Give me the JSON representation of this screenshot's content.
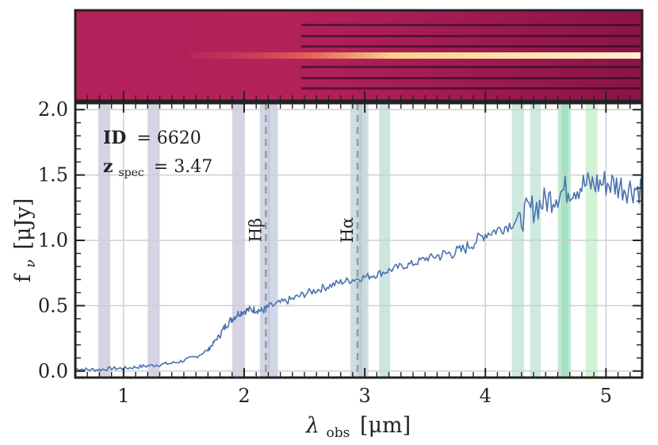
{
  "chart_data": {
    "type": "line",
    "xlabel": "λ",
    "xlabel_sub": "obs",
    "xlabel_unit": "[μm]",
    "ylabel": "f",
    "ylabel_sub": "ν",
    "ylabel_unit": "[μJy]",
    "xlim": [
      0.6,
      5.3
    ],
    "ylim": [
      -0.05,
      2.05
    ],
    "x_ticks": [
      1,
      2,
      3,
      4,
      5
    ],
    "x_tick_labels": [
      "1",
      "2",
      "3",
      "4",
      "5"
    ],
    "y_ticks": [
      0.0,
      0.5,
      1.0,
      1.5,
      2.0
    ],
    "y_tick_labels": [
      "0.0",
      "0.5",
      "1.0",
      "1.5",
      "2.0"
    ],
    "grid": true,
    "annotation": {
      "id_label": "ID",
      "id_value": "= 6620",
      "z_label": "z",
      "z_sub": "spec",
      "z_value": "= 3.47"
    },
    "emission_lines": [
      {
        "label": "Hβ",
        "x": 2.18
      },
      {
        "label": "Hα",
        "x": 2.94
      }
    ],
    "bands": [
      {
        "x0": 0.79,
        "x1": 0.89,
        "color": "#b7aed0"
      },
      {
        "x0": 1.2,
        "x1": 1.3,
        "color": "#b7aed0"
      },
      {
        "x0": 1.9,
        "x1": 2.0,
        "color": "#b7aed0"
      },
      {
        "x0": 2.13,
        "x1": 2.21,
        "color": "#a9b5cf"
      },
      {
        "x0": 2.2,
        "x1": 2.28,
        "color": "#a9b5cf"
      },
      {
        "x0": 2.88,
        "x1": 2.98,
        "color": "#a4c4cc"
      },
      {
        "x0": 2.95,
        "x1": 3.03,
        "color": "#a4c4cc"
      },
      {
        "x0": 3.12,
        "x1": 3.21,
        "color": "#a4cfc9"
      },
      {
        "x0": 4.22,
        "x1": 4.32,
        "color": "#a4d7c6"
      },
      {
        "x0": 4.37,
        "x1": 4.46,
        "color": "#a4d7c6"
      },
      {
        "x0": 4.6,
        "x1": 4.69,
        "color": "#8fdbb3"
      },
      {
        "x0": 4.63,
        "x1": 4.71,
        "color": "#8fdbb3"
      },
      {
        "x0": 4.83,
        "x1": 4.93,
        "color": "#b5e8b3"
      }
    ],
    "series": [
      {
        "color": "#4c72b0",
        "points": [
          [
            0.6,
            0.02
          ],
          [
            0.7,
            0.01
          ],
          [
            0.8,
            0.01
          ],
          [
            0.9,
            0.02
          ],
          [
            1.0,
            0.02
          ],
          [
            1.1,
            0.03
          ],
          [
            1.2,
            0.04
          ],
          [
            1.3,
            0.05
          ],
          [
            1.4,
            0.06
          ],
          [
            1.5,
            0.08
          ],
          [
            1.6,
            0.11
          ],
          [
            1.7,
            0.16
          ],
          [
            1.75,
            0.22
          ],
          [
            1.8,
            0.28
          ],
          [
            1.85,
            0.35
          ],
          [
            1.9,
            0.4
          ],
          [
            1.95,
            0.44
          ],
          [
            2.0,
            0.46
          ],
          [
            2.05,
            0.47
          ],
          [
            2.1,
            0.47
          ],
          [
            2.15,
            0.46
          ],
          [
            2.2,
            0.49
          ],
          [
            2.3,
            0.52
          ],
          [
            2.4,
            0.55
          ],
          [
            2.5,
            0.59
          ],
          [
            2.6,
            0.62
          ],
          [
            2.7,
            0.65
          ],
          [
            2.8,
            0.68
          ],
          [
            2.9,
            0.7
          ],
          [
            3.0,
            0.72
          ],
          [
            3.1,
            0.74
          ],
          [
            3.2,
            0.77
          ],
          [
            3.3,
            0.8
          ],
          [
            3.4,
            0.82
          ],
          [
            3.5,
            0.86
          ],
          [
            3.6,
            0.88
          ],
          [
            3.7,
            0.9
          ],
          [
            3.8,
            0.92
          ],
          [
            3.9,
            0.98
          ],
          [
            4.0,
            1.05
          ],
          [
            4.1,
            1.08
          ],
          [
            4.2,
            1.12
          ],
          [
            4.3,
            1.18
          ],
          [
            4.4,
            1.25
          ],
          [
            4.5,
            1.3
          ],
          [
            4.6,
            1.36
          ],
          [
            4.7,
            1.4
          ],
          [
            4.8,
            1.42
          ],
          [
            4.9,
            1.43
          ],
          [
            5.0,
            1.44
          ],
          [
            5.1,
            1.42
          ],
          [
            5.2,
            1.4
          ],
          [
            5.3,
            1.4
          ]
        ]
      }
    ]
  }
}
